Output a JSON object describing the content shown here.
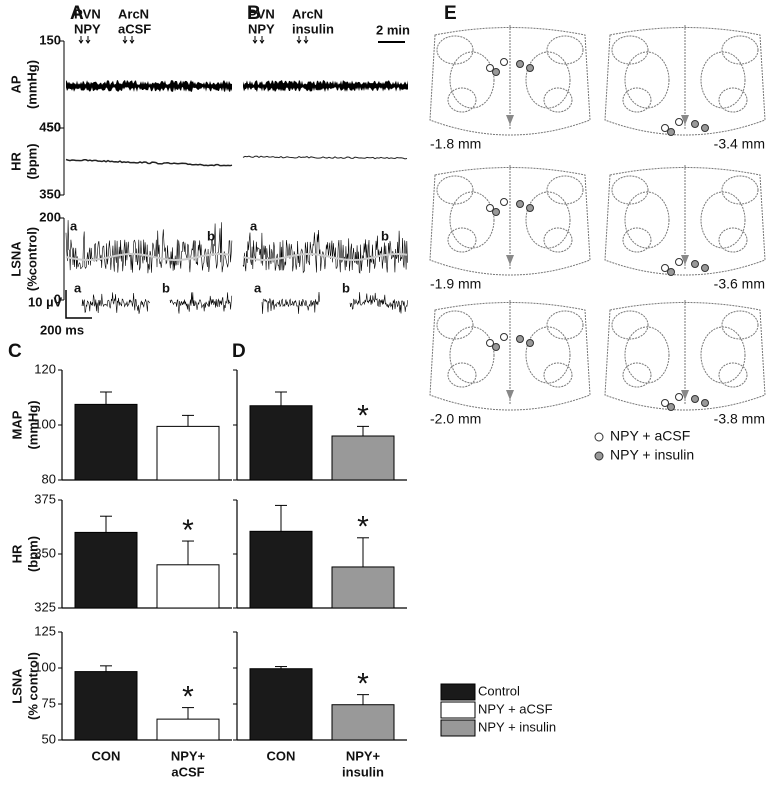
{
  "panel_labels": [
    "A",
    "B",
    "C",
    "D",
    "E"
  ],
  "traces": {
    "axes": [
      {
        "label": "AP",
        "unit": "(mmHg)",
        "yticks": [
          50,
          150
        ]
      },
      {
        "label": "HR",
        "unit": "(bpm)",
        "yticks": [
          350,
          450
        ]
      },
      {
        "label": "LSNA",
        "unit": "(%control)",
        "yticks": [
          0,
          200
        ]
      }
    ],
    "injections": [
      [
        {
          "site": "PVN",
          "agent": "NPY"
        },
        {
          "site": "ArcN",
          "agent": "aCSF"
        }
      ],
      [
        {
          "site": "PVN",
          "agent": "NPY"
        },
        {
          "site": "ArcN",
          "agent": "insulin"
        }
      ]
    ],
    "time_scale": "2 min",
    "voltage_scale": "10 µV",
    "burst_scale": "200 ms",
    "segments": [
      "a",
      "b"
    ]
  },
  "atlas": {
    "sections": [
      "-1.8 mm",
      "-3.4 mm",
      "-1.9 mm",
      "-3.6 mm",
      "-2.0 mm",
      "-3.8 mm"
    ],
    "legend": [
      "NPY + aCSF",
      "NPY + insulin"
    ]
  },
  "legend": [
    {
      "name": "Control",
      "color": "#1a1a1a"
    },
    {
      "name": "NPY + aCSF",
      "color": "#ffffff"
    },
    {
      "name": "NPY + insulin",
      "color": "#999999"
    }
  ],
  "chart_data": [
    {
      "type": "bar",
      "ylabel": "MAP",
      "yunit": "(mmHg)",
      "values": [
        107.5,
        99.5
      ],
      "errors": [
        4.5,
        4
      ],
      "colors": [
        "#1a1a1a",
        "#ffffff"
      ],
      "significance": [
        null,
        null
      ],
      "ylim": [
        80,
        120
      ],
      "yticks": [
        80,
        100,
        120
      ]
    },
    {
      "type": "bar",
      "ylabel": "HR",
      "yunit": "(bpm)",
      "values": [
        360,
        345
      ],
      "errors": [
        7.5,
        11
      ],
      "colors": [
        "#1a1a1a",
        "#ffffff"
      ],
      "significance": [
        null,
        "*"
      ],
      "ylim": [
        325,
        375
      ],
      "yticks": [
        325,
        350,
        375
      ]
    },
    {
      "type": "bar",
      "ylabel": "LSNA",
      "yunit": "(% control)",
      "values": [
        97.5,
        64.5
      ],
      "errors": [
        4,
        8
      ],
      "colors": [
        "#1a1a1a",
        "#ffffff"
      ],
      "significance": [
        null,
        "*"
      ],
      "ylim": [
        50,
        125
      ],
      "yticks": [
        50,
        75,
        100,
        125
      ],
      "categories": [
        [
          "CON"
        ],
        [
          "NPY+",
          "aCSF"
        ]
      ]
    },
    {
      "type": "bar",
      "values": [
        107,
        96
      ],
      "errors": [
        5,
        3.5
      ],
      "colors": [
        "#1a1a1a",
        "#999999"
      ],
      "significance": [
        null,
        "*"
      ],
      "ylim": [
        80,
        120
      ]
    },
    {
      "type": "bar",
      "values": [
        360.5,
        344
      ],
      "errors": [
        12,
        13.5
      ],
      "colors": [
        "#1a1a1a",
        "#999999"
      ],
      "significance": [
        null,
        "*"
      ],
      "ylim": [
        325,
        375
      ]
    },
    {
      "type": "bar",
      "values": [
        99.5,
        74.5
      ],
      "errors": [
        1.5,
        7
      ],
      "colors": [
        "#1a1a1a",
        "#999999"
      ],
      "significance": [
        null,
        "*"
      ],
      "ylim": [
        50,
        125
      ],
      "categories": [
        [
          "CON"
        ],
        [
          "NPY+",
          "insulin"
        ]
      ]
    }
  ]
}
